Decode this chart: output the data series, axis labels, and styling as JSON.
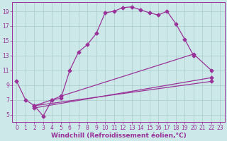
{
  "bg_color": "#cce8e8",
  "grid_color": "#aacccc",
  "line_color": "#993399",
  "marker": "D",
  "markersize": 2.5,
  "linewidth": 0.9,
  "xlabel": "Windchill (Refroidissement éolien,°C)",
  "xlabel_fontsize": 6.5,
  "tick_fontsize": 5.5,
  "xlim": [
    -0.5,
    23.5
  ],
  "ylim": [
    4.0,
    20.2
  ],
  "yticks": [
    5,
    7,
    9,
    11,
    13,
    15,
    17,
    19
  ],
  "xticks": [
    0,
    1,
    2,
    3,
    4,
    5,
    6,
    7,
    8,
    9,
    10,
    11,
    12,
    13,
    14,
    15,
    16,
    17,
    18,
    19,
    20,
    21,
    22,
    23
  ],
  "curve1_x": [
    0,
    1,
    2,
    3,
    4,
    5,
    6,
    7,
    8,
    9,
    10,
    11,
    12,
    13,
    14,
    15,
    16,
    17,
    18,
    19,
    20
  ],
  "curve1_y": [
    9.5,
    7.0,
    6.2,
    4.8,
    7.0,
    7.2,
    11.0,
    13.5,
    14.5,
    16.0,
    18.8,
    19.0,
    19.5,
    19.6,
    19.2,
    18.8,
    18.5,
    19.0,
    17.3,
    15.2,
    13.0
  ],
  "curve2_x": [
    2,
    4,
    5,
    20,
    22
  ],
  "curve2_y": [
    6.2,
    7.0,
    7.5,
    13.2,
    11.0
  ],
  "curve3_x": [
    2,
    22
  ],
  "curve3_y": [
    5.9,
    10.0
  ],
  "curve4_x": [
    2,
    22
  ],
  "curve4_y": [
    6.2,
    9.5
  ]
}
